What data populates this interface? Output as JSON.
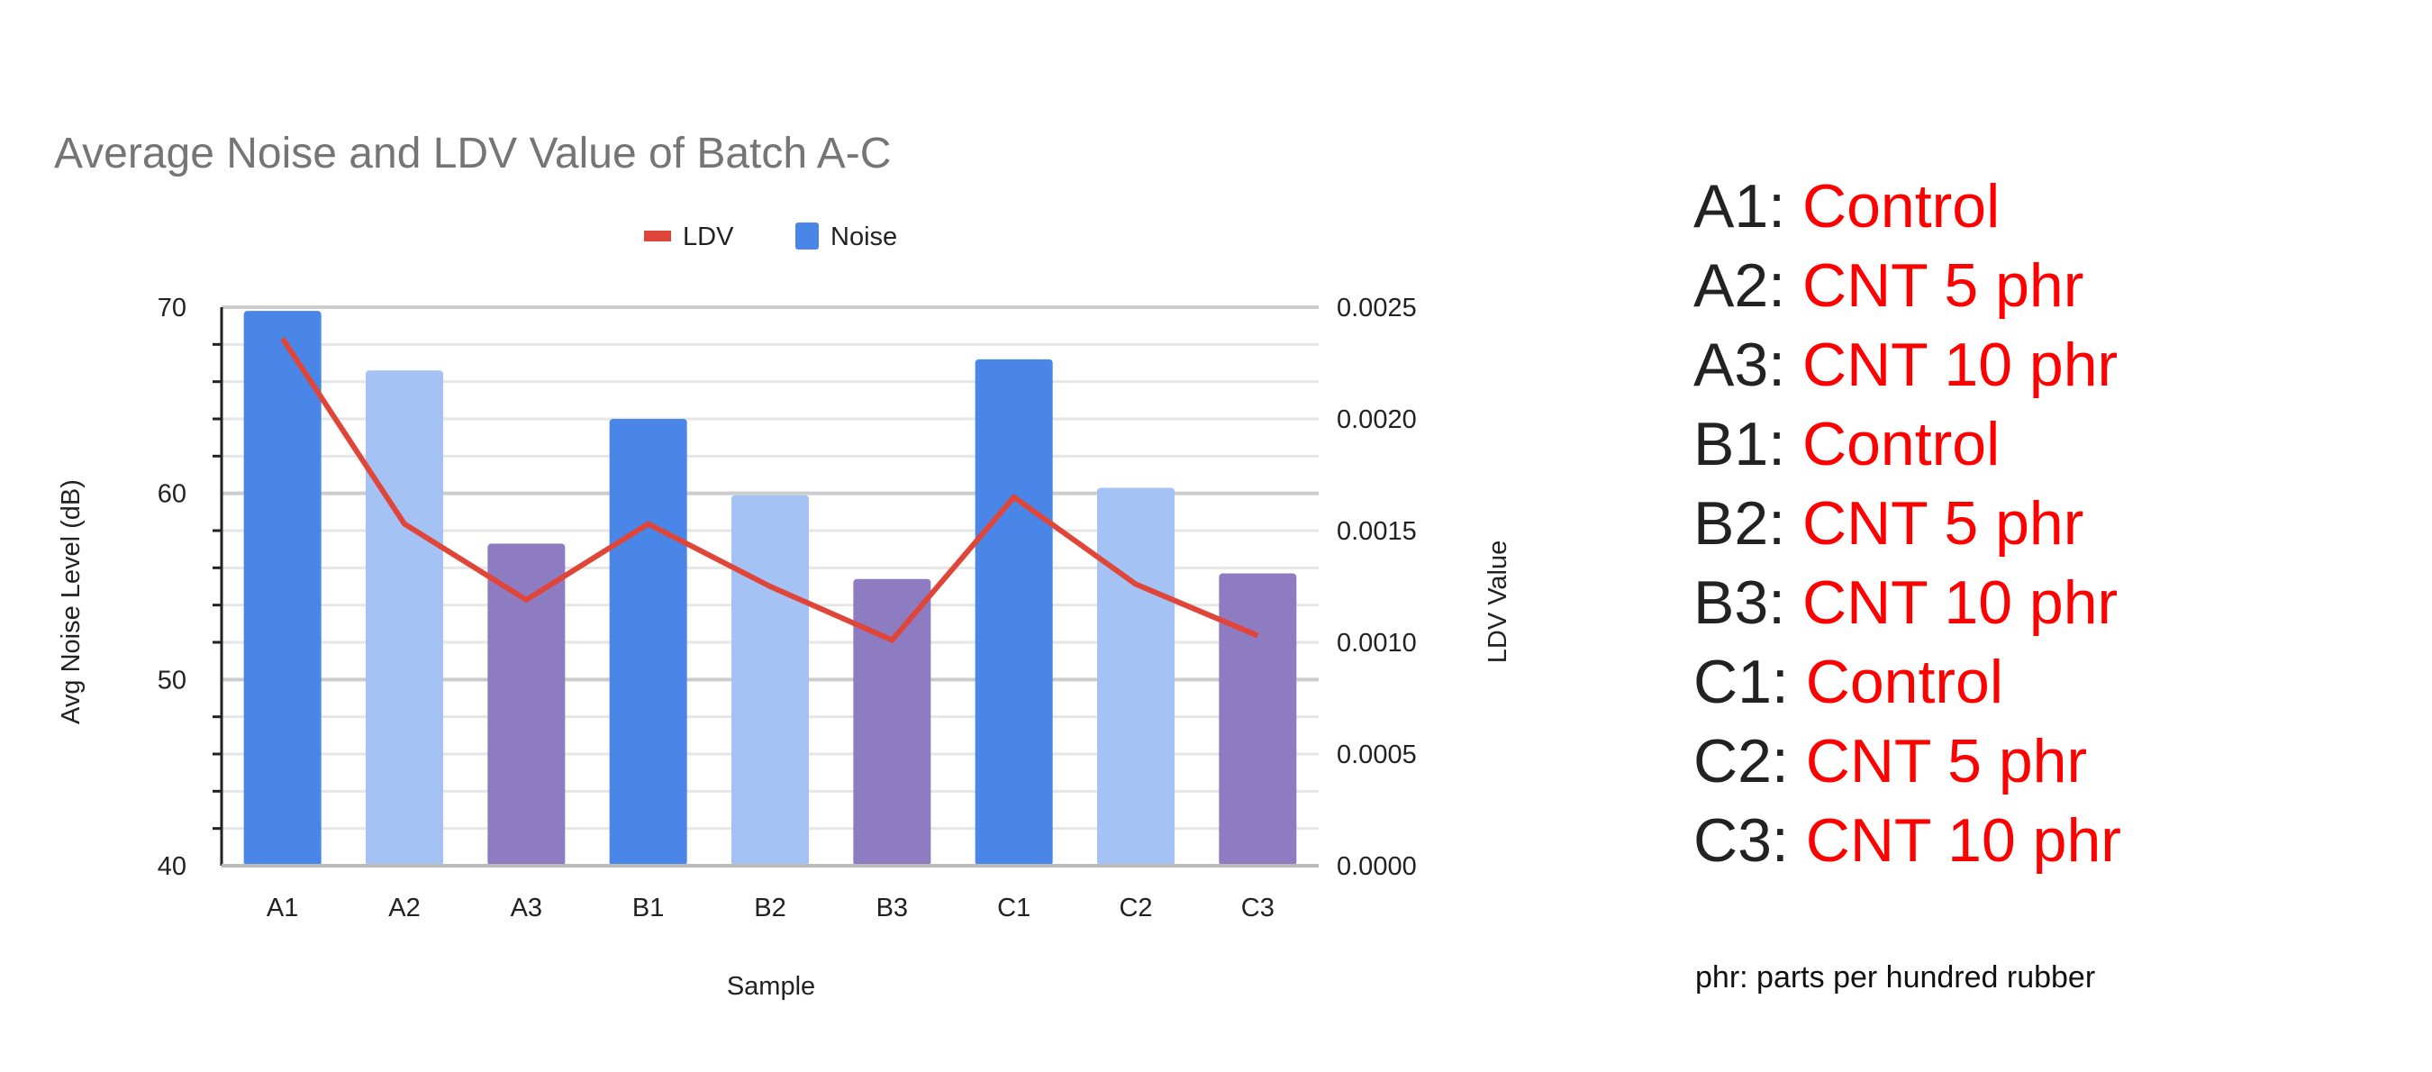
{
  "chart_data": {
    "type": "bar+line",
    "title": "Average Noise and LDV Value of Batch A-C",
    "xlabel": "Sample",
    "ylabel_left": "Avg Noise Level (dB)",
    "ylabel_right": "LDV Value",
    "categories": [
      "A1",
      "A2",
      "A3",
      "B1",
      "B2",
      "B3",
      "C1",
      "C2",
      "C3"
    ],
    "ylim_left": [
      40,
      70
    ],
    "ylim_right": [
      0,
      0.0025
    ],
    "yticks_left": [
      "40",
      "50",
      "60",
      "70"
    ],
    "yticks_right": [
      "0.0000",
      "0.0005",
      "0.0010",
      "0.0015",
      "0.0020",
      "0.0025"
    ],
    "grid": true,
    "legend_position": "top",
    "series": [
      {
        "name": "LDV",
        "type": "line",
        "axis": "right",
        "color": "#e0453a",
        "values": [
          0.00236,
          0.00153,
          0.00119,
          0.00153,
          0.00125,
          0.00101,
          0.00165,
          0.00126,
          0.00103
        ]
      },
      {
        "name": "Noise",
        "type": "bar",
        "axis": "left",
        "color": "#4a86e8",
        "values": [
          69.8,
          66.6,
          57.3,
          64.0,
          59.9,
          55.4,
          67.2,
          60.3,
          55.7
        ],
        "bar_colors": [
          "#4a86e8",
          "#a4c2f4",
          "#8e7cc3",
          "#4a86e8",
          "#a4c2f4",
          "#8e7cc3",
          "#4a86e8",
          "#a4c2f4",
          "#8e7cc3"
        ]
      }
    ]
  },
  "notes": [
    {
      "code": "A1:",
      "desc": "Control"
    },
    {
      "code": "A2:",
      "desc": "CNT 5 phr"
    },
    {
      "code": "A3:",
      "desc": "CNT 10 phr"
    },
    {
      "code": "B1:",
      "desc": "Control"
    },
    {
      "code": "B2:",
      "desc": "CNT 5 phr"
    },
    {
      "code": "B3:",
      "desc": "CNT 10 phr"
    },
    {
      "code": "C1:",
      "desc": "Control"
    },
    {
      "code": "C2:",
      "desc": "CNT 5 phr"
    },
    {
      "code": "C3:",
      "desc": "CNT 10 phr"
    }
  ],
  "footnote": "phr: parts per hundred rubber"
}
